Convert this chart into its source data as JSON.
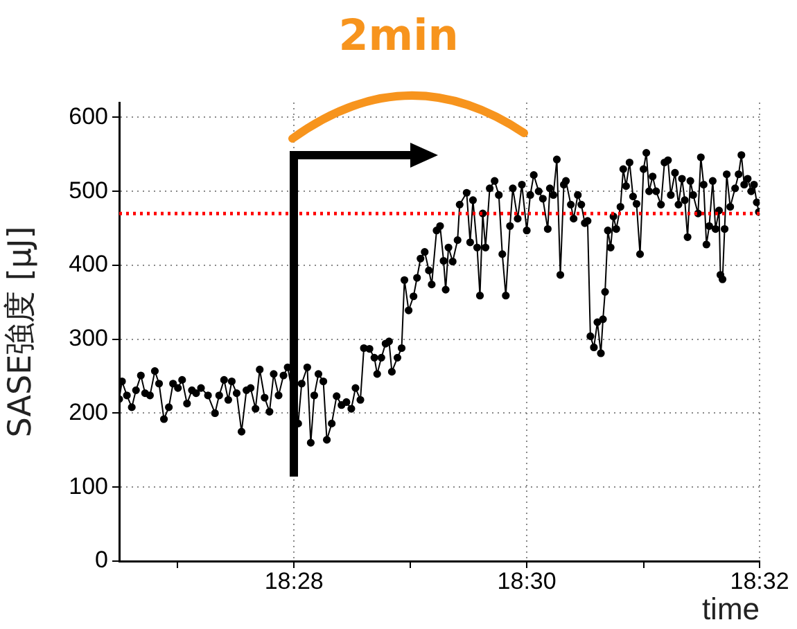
{
  "chart_data": {
    "type": "line",
    "ylabel": "SASE強度 [μJ]",
    "xlabel": "time",
    "annotations": [
      "2min"
    ],
    "xlim": [
      18.4417,
      18.5333
    ],
    "xticks": [
      {
        "value": 18.45,
        "label": null
      },
      {
        "value": 18.4667,
        "label": "18:28"
      },
      {
        "value": 18.4833,
        "label": null
      },
      {
        "value": 18.5,
        "label": "18:30"
      },
      {
        "value": 18.5167,
        "label": null
      },
      {
        "value": 18.5333,
        "label": "18:32"
      }
    ],
    "ylim": [
      0,
      620
    ],
    "yticks": [
      0,
      100,
      200,
      300,
      400,
      500,
      600
    ],
    "grid": true,
    "marker": "circle",
    "line_style": "solid",
    "ref_lines": [
      {
        "axis": "y",
        "value": 470,
        "color": "#ff0000",
        "line_style": "dotted"
      }
    ],
    "series": [
      {
        "color": "#000000",
        "x": [
          18.4417,
          18.4421,
          18.4428,
          18.4435,
          18.4441,
          18.4448,
          18.4454,
          18.4461,
          18.4468,
          18.4474,
          18.4481,
          18.4488,
          18.4494,
          18.4501,
          18.4507,
          18.4514,
          18.4521,
          18.4527,
          18.4534,
          18.4544,
          18.4554,
          18.456,
          18.4567,
          18.4573,
          18.4578,
          18.4585,
          18.4592,
          18.4599,
          18.4605,
          18.4612,
          18.4618,
          18.4625,
          18.4632,
          18.4638,
          18.4645,
          18.4652,
          18.4658,
          18.4673,
          18.4678,
          18.4686,
          18.4691,
          18.4696,
          18.4702,
          18.4709,
          18.4714,
          18.4721,
          18.4728,
          18.4735,
          18.4742,
          18.4749,
          18.4755,
          18.4762,
          18.4767,
          18.4775,
          18.4782,
          18.4786,
          18.4792,
          18.4798,
          18.4803,
          18.4807,
          18.4815,
          18.4821,
          18.4825,
          18.4831,
          18.4838,
          18.4843,
          18.4848,
          18.4854,
          18.486,
          18.4864,
          18.4871,
          18.4876,
          18.4881,
          18.4884,
          18.4888,
          18.4894,
          18.4901,
          18.4904,
          18.4914,
          18.4919,
          18.4923,
          18.4929,
          18.4933,
          18.4937,
          18.4941,
          18.4947,
          18.4954,
          18.496,
          18.4965,
          18.497,
          18.4976,
          18.498,
          18.4987,
          18.4993,
          18.5,
          18.5005,
          18.501,
          18.5017,
          18.5023,
          18.503,
          18.5033,
          18.5038,
          18.5043,
          18.5048,
          18.5053,
          18.5056,
          18.5063,
          18.5067,
          18.5073,
          18.5078,
          18.5083,
          18.5087,
          18.5091,
          18.5096,
          18.5101,
          18.5106,
          18.5109,
          18.5112,
          18.5116,
          18.512,
          18.5124,
          18.5128,
          18.5134,
          18.5138,
          18.5142,
          18.5147,
          18.5152,
          18.5157,
          18.5162,
          18.5167,
          18.5171,
          18.5175,
          18.518,
          18.5185,
          18.5192,
          18.5197,
          18.5202,
          18.5206,
          18.5212,
          18.5217,
          18.5222,
          18.5226,
          18.523,
          18.5234,
          18.5238,
          18.5245,
          18.5249,
          18.5253,
          18.5257,
          18.5261,
          18.5266,
          18.527,
          18.5275,
          18.5277,
          18.528,
          18.5283,
          18.5286,
          18.5291,
          18.5298,
          18.5303,
          18.5307,
          18.5311,
          18.5316,
          18.5321,
          18.5325,
          18.5329,
          18.5332
        ],
        "values": [
          219,
          243,
          224,
          208,
          231,
          251,
          227,
          224,
          257,
          240,
          192,
          208,
          240,
          234,
          245,
          213,
          231,
          227,
          234,
          224,
          200,
          224,
          245,
          218,
          243,
          227,
          175,
          231,
          234,
          206,
          259,
          221,
          202,
          253,
          224,
          251,
          262,
          186,
          240,
          262,
          160,
          224,
          253,
          243,
          164,
          186,
          223,
          211,
          215,
          206,
          234,
          218,
          288,
          287,
          275,
          253,
          275,
          294,
          297,
          256,
          275,
          288,
          380,
          339,
          358,
          383,
          409,
          418,
          393,
          374,
          447,
          453,
          406,
          367,
          424,
          405,
          434,
          482,
          498,
          431,
          488,
          424,
          359,
          470,
          424,
          504,
          514,
          495,
          415,
          359,
          453,
          504,
          463,
          509,
          447,
          495,
          522,
          500,
          490,
          449,
          504,
          495,
          543,
          387,
          509,
          514,
          482,
          463,
          495,
          482,
          457,
          460,
          304,
          289,
          323,
          281,
          327,
          364,
          447,
          424,
          466,
          449,
          479,
          530,
          507,
          539,
          493,
          483,
          415,
          530,
          552,
          500,
          520,
          500,
          482,
          539,
          542,
          495,
          525,
          482,
          517,
          488,
          438,
          514,
          495,
          470,
          546,
          509,
          428,
          453,
          514,
          449,
          474,
          387,
          381,
          449,
          523,
          479,
          504,
          523,
          549,
          509,
          517,
          500,
          509,
          485,
          472
        ]
      }
    ]
  }
}
